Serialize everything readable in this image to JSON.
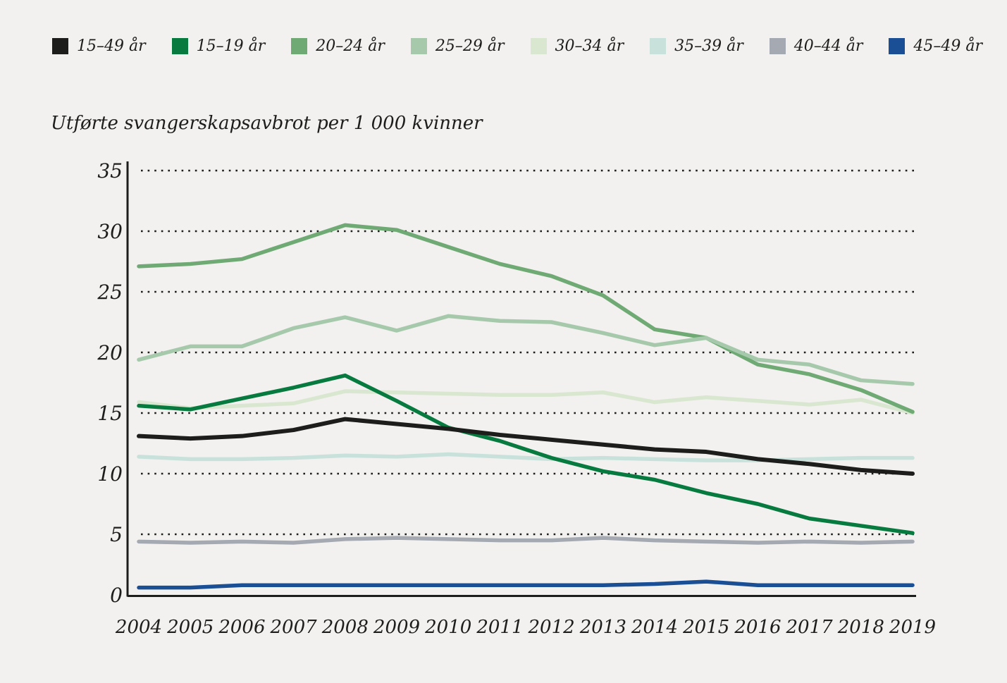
{
  "page": {
    "background": "#f2f1ef",
    "text_color": "#1d1d1b"
  },
  "chart_data": {
    "type": "line",
    "title": "Utførte svangerskapsavbrot per 1 000 kvinner",
    "xlabel": "",
    "ylabel": "Utførte svangerskapsavbrot per 1 000 kvinner",
    "x": [
      2004,
      2005,
      2006,
      2007,
      2008,
      2009,
      2010,
      2011,
      2012,
      2013,
      2014,
      2015,
      2016,
      2017,
      2018,
      2019
    ],
    "ylim": [
      0,
      35
    ],
    "yticks": [
      0,
      5,
      10,
      15,
      20,
      25,
      30,
      35
    ],
    "grid": "horizontal-dotted",
    "legend_position": "top",
    "axis_color": "#1d1d1b",
    "series": [
      {
        "name": "15–49 år",
        "color": "#1d1d1b",
        "width": 6,
        "values": [
          13.1,
          12.9,
          13.1,
          13.6,
          14.5,
          14.1,
          13.7,
          13.2,
          12.8,
          12.4,
          12.0,
          11.8,
          11.2,
          10.8,
          10.3,
          10.0
        ]
      },
      {
        "name": "15–19 år",
        "color": "#077a3f",
        "width": 5.5,
        "values": [
          15.6,
          15.3,
          16.2,
          17.1,
          18.1,
          16.0,
          13.8,
          12.7,
          11.3,
          10.2,
          9.5,
          8.4,
          7.5,
          6.3,
          5.7,
          5.1
        ]
      },
      {
        "name": "20–24 år",
        "color": "#6fa973",
        "width": 5.5,
        "values": [
          27.1,
          27.3,
          27.7,
          29.1,
          30.5,
          30.1,
          28.7,
          27.3,
          26.3,
          24.7,
          21.9,
          21.2,
          19.0,
          18.2,
          16.9,
          15.1
        ]
      },
      {
        "name": "25–29 år",
        "color": "#a6c9ac",
        "width": 5.5,
        "values": [
          19.4,
          20.5,
          20.5,
          22.0,
          22.9,
          21.8,
          23.0,
          22.6,
          22.5,
          21.6,
          20.6,
          21.2,
          19.4,
          19.0,
          17.7,
          17.4
        ]
      },
      {
        "name": "30–34 år",
        "color": "#d9e7d0",
        "width": 5.5,
        "values": [
          15.9,
          15.4,
          15.6,
          15.8,
          16.8,
          16.7,
          16.6,
          16.5,
          16.5,
          16.7,
          15.9,
          16.3,
          16.0,
          15.7,
          16.1,
          15.0
        ]
      },
      {
        "name": "35–39 år",
        "color": "#c8e2db",
        "width": 5.5,
        "values": [
          11.4,
          11.2,
          11.2,
          11.3,
          11.5,
          11.4,
          11.6,
          11.4,
          11.2,
          11.3,
          11.2,
          11.1,
          11.1,
          11.2,
          11.3,
          11.3
        ]
      },
      {
        "name": "40–44 år",
        "color": "#a4a9b2",
        "width": 5.5,
        "values": [
          4.4,
          4.3,
          4.4,
          4.3,
          4.6,
          4.7,
          4.6,
          4.5,
          4.5,
          4.7,
          4.5,
          4.4,
          4.3,
          4.4,
          4.3,
          4.4
        ]
      },
      {
        "name": "45–49 år",
        "color": "#1a4f96",
        "width": 5.5,
        "values": [
          0.6,
          0.6,
          0.8,
          0.8,
          0.8,
          0.8,
          0.8,
          0.8,
          0.8,
          0.8,
          0.9,
          1.1,
          0.8,
          0.8,
          0.8,
          0.8
        ]
      }
    ],
    "draw_order": [
      6,
      7,
      5,
      4,
      2,
      3,
      1,
      0
    ]
  }
}
